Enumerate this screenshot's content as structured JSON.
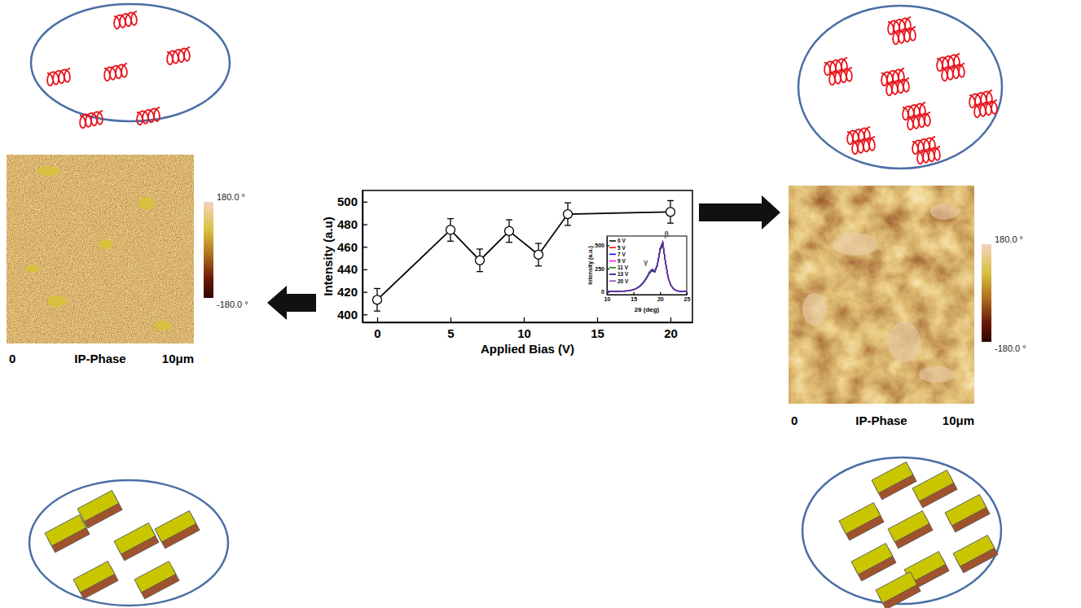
{
  "chart_data": [
    {
      "type": "line",
      "x_label": "Applied Bias (V)",
      "y_label": "Intensity (a.u)",
      "x": [
        0,
        5,
        7,
        9,
        11,
        13,
        20
      ],
      "values": [
        413,
        475,
        448,
        474,
        453,
        489,
        491
      ],
      "errors": [
        10,
        10,
        10,
        10,
        10,
        10,
        10
      ],
      "color": "#000000",
      "marker": "open-circle",
      "line_style": "solid",
      "xlim": [
        -1,
        21.5
      ],
      "xticks": [
        0,
        5,
        10,
        15,
        20
      ],
      "ylim": [
        393,
        510
      ],
      "yticks": [
        400,
        420,
        440,
        460,
        480,
        500
      ]
    },
    {
      "type": "line",
      "x_label": "2θ (deg)",
      "y_label": "Intensity (a.u.)",
      "x": [
        10,
        10.5,
        11,
        11.5,
        12,
        12.5,
        13,
        13.5,
        14,
        14.5,
        15,
        15.5,
        16,
        16.5,
        17,
        17.5,
        18,
        18.5,
        19,
        19.5,
        20,
        20.5,
        21,
        21.5,
        22,
        22.5,
        23,
        23.5,
        24,
        24.5,
        25
      ],
      "series": [
        {
          "name": "0 V",
          "color": "#000000",
          "values": [
            4,
            3,
            5,
            4,
            5,
            6,
            7,
            9,
            11,
            16,
            22,
            34,
            50,
            74,
            106,
            150,
            200,
            228,
            212,
            285,
            445,
            512,
            315,
            150,
            70,
            32,
            14,
            7,
            5,
            4,
            3
          ]
        },
        {
          "name": "5 V",
          "color": "#ff0000",
          "values": [
            5,
            3,
            5,
            4,
            5,
            7,
            8,
            9,
            12,
            17,
            24,
            36,
            53,
            78,
            112,
            156,
            210,
            240,
            220,
            295,
            462,
            530,
            325,
            156,
            73,
            34,
            15,
            8,
            5,
            4,
            3
          ]
        },
        {
          "name": "7 V",
          "color": "#0000ff",
          "values": [
            4,
            3,
            6,
            4,
            5,
            6,
            7,
            9,
            11,
            16,
            23,
            35,
            51,
            75,
            108,
            152,
            204,
            232,
            215,
            288,
            452,
            520,
            318,
            152,
            71,
            33,
            14,
            7,
            5,
            4,
            3
          ]
        },
        {
          "name": "9 V",
          "color": "#ff00ff",
          "values": [
            5,
            3,
            6,
            4,
            5,
            7,
            8,
            10,
            12,
            17,
            24,
            37,
            54,
            79,
            113,
            158,
            212,
            242,
            222,
            297,
            465,
            534,
            327,
            158,
            74,
            34,
            15,
            8,
            5,
            4,
            3
          ]
        },
        {
          "name": "11 V",
          "color": "#008000",
          "values": [
            4,
            3,
            5,
            4,
            5,
            6,
            8,
            9,
            11,
            17,
            23,
            35,
            52,
            76,
            110,
            154,
            206,
            235,
            217,
            291,
            455,
            524,
            320,
            154,
            72,
            33,
            14,
            7,
            5,
            4,
            3
          ]
        },
        {
          "name": "13 V",
          "color": "#000080",
          "values": [
            5,
            3,
            6,
            4,
            5,
            7,
            8,
            10,
            12,
            18,
            25,
            38,
            55,
            80,
            115,
            160,
            214,
            244,
            224,
            299,
            468,
            538,
            329,
            159,
            75,
            35,
            15,
            8,
            5,
            4,
            3
          ]
        },
        {
          "name": "20 V",
          "color": "#7b3fbf",
          "values": [
            5,
            3,
            6,
            4,
            5,
            7,
            8,
            10,
            12,
            18,
            25,
            38,
            55,
            80,
            115,
            160,
            215,
            245,
            225,
            300,
            470,
            540,
            330,
            160,
            75,
            35,
            15,
            8,
            5,
            4,
            3
          ]
        }
      ],
      "annotations": [
        {
          "text": "γ",
          "x": 17.3,
          "y": 290
        },
        {
          "text": "β",
          "x": 21.2,
          "y": 590
        }
      ],
      "legend": "upper left",
      "xlim": [
        10,
        25
      ],
      "xticks": [
        10,
        15,
        20,
        25
      ],
      "ylim": [
        -30,
        600
      ],
      "yticks": [
        0,
        250,
        500
      ]
    }
  ],
  "images": [
    {
      "label_start": "0",
      "title": "IP-Phase",
      "label_end": "10μm",
      "colorbar": {
        "range": [
          -180,
          180
        ],
        "ticks": [
          {
            "value": 180,
            "label": "180.0 °"
          },
          {
            "value": -180,
            "label": "-180.0 °"
          }
        ]
      }
    },
    {
      "label_start": "0",
      "title": "IP-Phase",
      "label_end": "10μm",
      "colorbar": {
        "range": [
          -180,
          180
        ],
        "ticks": [
          {
            "value": 180,
            "label": "180.0 °"
          },
          {
            "value": -180,
            "label": "-180.0 °"
          }
        ]
      }
    }
  ]
}
